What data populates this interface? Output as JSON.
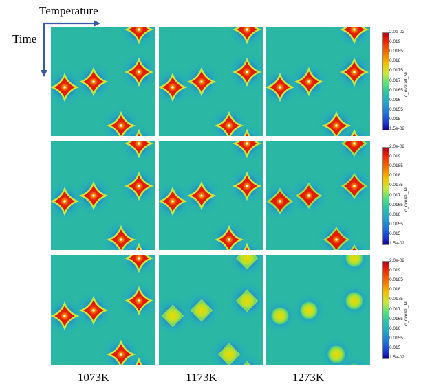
{
  "axis_labels": {
    "horizontal": "Temperature",
    "vertical": "Time"
  },
  "columns": [
    {
      "label": "1073K"
    },
    {
      "label": "1173K"
    },
    {
      "label": "1273K"
    }
  ],
  "rows": 3,
  "colorbar": {
    "title": "c_overall_Ni",
    "ticks": [
      "2.0e-02",
      "0.019",
      "0.0185",
      "0.018",
      "0.0175",
      "0.017",
      "0.0165",
      "0.016",
      "0.0155",
      "0.015",
      "1.5e-02"
    ]
  },
  "colors": {
    "background_field": "#2ab7a3",
    "high": "#e81d00",
    "low": "#1b2fd0",
    "arrow": "#3a5aa8"
  },
  "panel_styles": [
    [
      "star",
      "star",
      "star"
    ],
    [
      "star",
      "star",
      "star-soft"
    ],
    [
      "star",
      "soft",
      "blob"
    ]
  ]
}
